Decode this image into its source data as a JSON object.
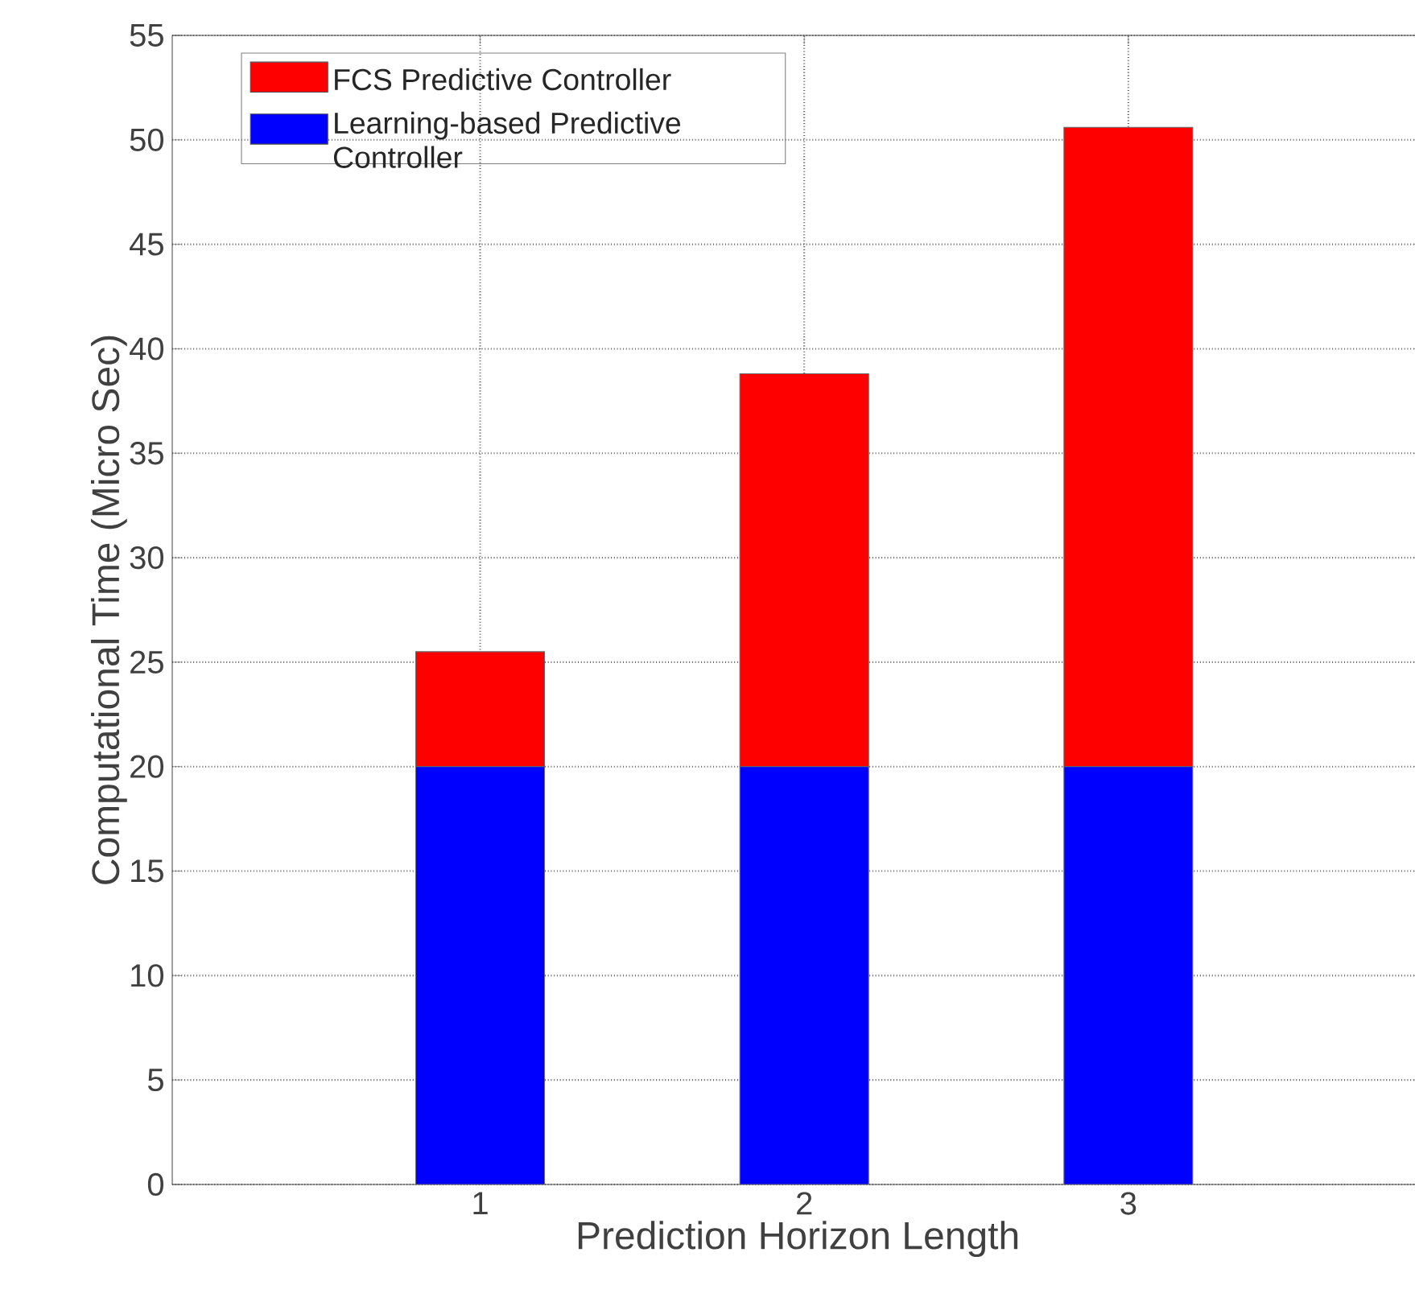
{
  "chart_data": {
    "type": "bar",
    "stacked": true,
    "categories": [
      "1",
      "2",
      "3"
    ],
    "xlabel": "Prediction Horizon Length",
    "ylabel": "Computational Time (Micro Sec)",
    "series": [
      {
        "name": "Learning-based Predictive Controller",
        "color": "#0000ff",
        "values": [
          20,
          20,
          20
        ]
      },
      {
        "name": "FCS Predictive Controller",
        "color": "#ff0000",
        "values": [
          5.5,
          18.8,
          30.6
        ]
      }
    ],
    "ylim": [
      0,
      55
    ],
    "yticks": [
      0,
      5,
      10,
      15,
      20,
      25,
      30,
      35,
      40,
      45,
      50,
      55
    ],
    "grid": true,
    "legend": "top left"
  }
}
